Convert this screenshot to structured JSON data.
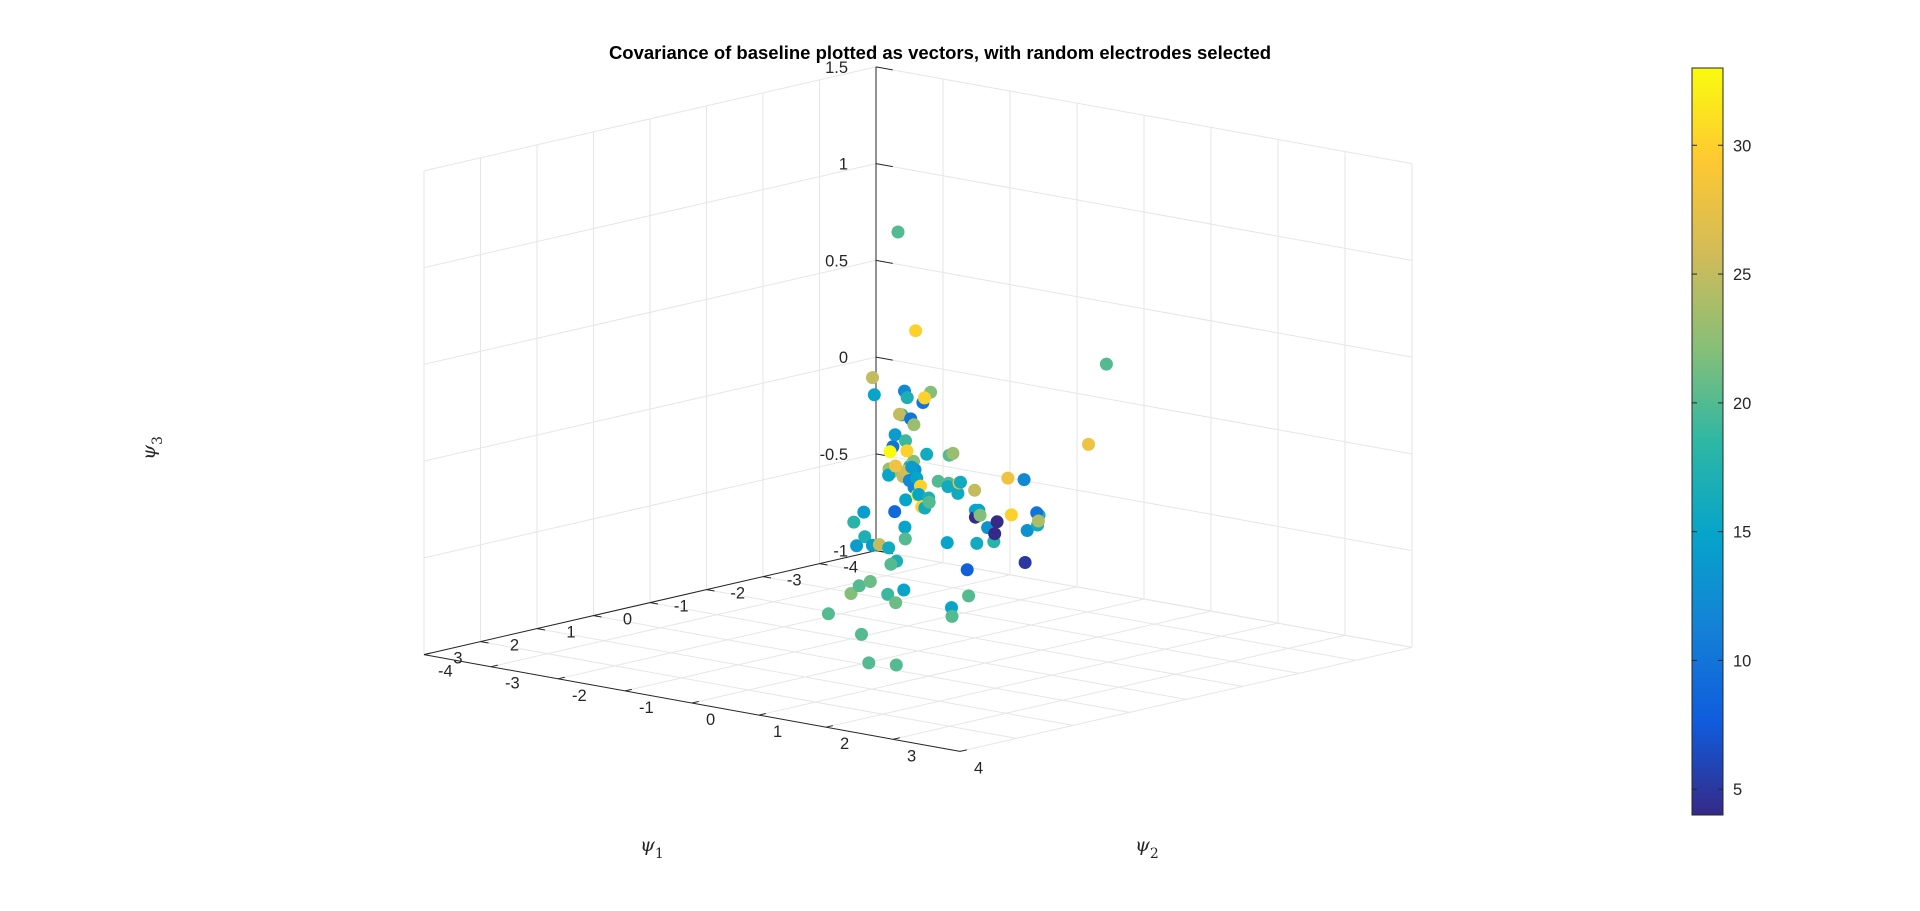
{
  "chart_data": {
    "type": "scatter3d",
    "title": "Covariance of baseline plotted as vectors, with random electrodes selected",
    "xlabel": {
      "symbol": "ψ",
      "sub": "1"
    },
    "ylabel": {
      "symbol": "ψ",
      "sub": "2"
    },
    "zlabel": {
      "symbol": "ψ",
      "sub": "3"
    },
    "xlim": [
      -4,
      4
    ],
    "ylim": [
      -4,
      4
    ],
    "zlim": [
      -1,
      1.5
    ],
    "x_ticks": [
      "-4",
      "-3",
      "-2",
      "-1",
      "0",
      "1",
      "2",
      "3"
    ],
    "y_ticks": [
      "-4",
      "-3",
      "-2",
      "-1",
      "0",
      "1",
      "2",
      "3",
      "4"
    ],
    "z_ticks": [
      "-1",
      "-0.5",
      "0",
      "0.5",
      "1",
      "1.5"
    ],
    "grid": true,
    "colormap": "parula",
    "colorbar": {
      "range": [
        4,
        33
      ],
      "ticks": [
        "5",
        "10",
        "15",
        "20",
        "25",
        "30"
      ]
    },
    "points": [
      {
        "x": -3.31,
        "y": -3.09,
        "z": 0.75,
        "c": 20
      },
      {
        "x": 1.93,
        "y": 4.44,
        "z": 0.89,
        "c": 20
      },
      {
        "x": -0.61,
        "y": -0.55,
        "z": 0.58,
        "c": 30
      },
      {
        "x": -1.59,
        "y": -2.02,
        "z": 0.18,
        "c": 25
      },
      {
        "x": -1.61,
        "y": -2.01,
        "z": 0.09,
        "c": 15
      },
      {
        "x": -0.84,
        "y": -0.91,
        "z": 0.23,
        "c": 12
      },
      {
        "x": -0.58,
        "y": -0.65,
        "z": 0.23,
        "c": 17
      },
      {
        "x": -0.91,
        "y": -0.58,
        "z": 0.24,
        "c": 22
      },
      {
        "x": -0.49,
        "y": -0.34,
        "z": 0.23,
        "c": 10
      },
      {
        "x": -0.44,
        "y": -0.48,
        "z": 0.14,
        "c": 10
      },
      {
        "x": -0.71,
        "y": -0.84,
        "z": 0.12,
        "c": 17
      },
      {
        "x": -0.55,
        "y": -0.74,
        "z": 0.14,
        "c": 25
      },
      {
        "x": 0.3,
        "y": 0.35,
        "z": 0.35,
        "c": 30
      },
      {
        "x": -1.11,
        "y": -1.31,
        "z": -0.1,
        "c": 10
      },
      {
        "x": -0.97,
        "y": -1.16,
        "z": -0.02,
        "c": 14
      },
      {
        "x": -0.53,
        "y": -0.88,
        "z": -0.15,
        "c": 23
      },
      {
        "x": -0.47,
        "y": -0.52,
        "z": -0.11,
        "c": 18
      },
      {
        "x": 0.14,
        "y": -0.3,
        "z": 0.02,
        "c": 33
      },
      {
        "x": -0.04,
        "y": -0.22,
        "z": 0.07,
        "c": 19
      },
      {
        "x": -0.05,
        "y": -0.11,
        "z": -0.03,
        "c": 22
      },
      {
        "x": 0.21,
        "y": -0.16,
        "z": -0.04,
        "c": 28
      },
      {
        "x": -0.19,
        "y": -0.22,
        "z": -0.1,
        "c": 8
      },
      {
        "x": -0.07,
        "y": -0.24,
        "z": -0.09,
        "c": 26
      },
      {
        "x": 0.22,
        "y": 0.02,
        "z": 0.05,
        "c": 30
      },
      {
        "x": -0.03,
        "y": -0.07,
        "z": -0.07,
        "c": 13
      },
      {
        "x": 0.12,
        "y": 0.04,
        "z": 0.18,
        "c": 23
      },
      {
        "x": 0.14,
        "y": -0.01,
        "z": -0.11,
        "c": 12
      },
      {
        "x": 0.07,
        "y": 0.0,
        "z": -0.15,
        "c": 12
      },
      {
        "x": 0.17,
        "y": -0.04,
        "z": -0.21,
        "c": 15
      },
      {
        "x": 0.3,
        "y": 0.16,
        "z": -0.02,
        "c": 14
      },
      {
        "x": 0.4,
        "y": 0.32,
        "z": -0.06,
        "c": 15
      },
      {
        "x": 0.38,
        "y": 0.31,
        "z": -0.15,
        "c": 33
      },
      {
        "x": -0.43,
        "y": -0.75,
        "z": -0.15,
        "c": 23
      },
      {
        "x": -0.18,
        "y": -0.59,
        "z": -0.14,
        "c": 15
      },
      {
        "x": -0.4,
        "y": -0.56,
        "z": -0.16,
        "c": 25
      },
      {
        "x": 0.01,
        "y": -0.34,
        "z": -0.3,
        "c": 9
      },
      {
        "x": 0.6,
        "y": 0.31,
        "z": -0.3,
        "c": 15
      },
      {
        "x": -0.31,
        "y": -1.07,
        "z": -0.37,
        "c": 14
      },
      {
        "x": 0.2,
        "y": -0.79,
        "z": -0.37,
        "c": 18
      },
      {
        "x": 0.74,
        "y": -0.17,
        "z": -0.37,
        "c": 17
      },
      {
        "x": 0.89,
        "y": 0.07,
        "z": -0.39,
        "c": 14
      },
      {
        "x": 1.05,
        "y": 0.31,
        "z": -0.36,
        "c": 25
      },
      {
        "x": 1.29,
        "y": 0.65,
        "z": -0.34,
        "c": 16
      },
      {
        "x": 1.02,
        "y": 0.67,
        "z": -0.31,
        "c": 20
      },
      {
        "x": 0.88,
        "y": 0.78,
        "z": -0.04,
        "c": 30
      },
      {
        "x": 1.09,
        "y": 0.93,
        "z": -0.06,
        "c": 15
      },
      {
        "x": 1.18,
        "y": 1.05,
        "z": -0.11,
        "c": 30
      },
      {
        "x": 1.08,
        "y": 1.07,
        "z": -0.07,
        "c": 17
      },
      {
        "x": 1.03,
        "y": 1.17,
        "z": 0.02,
        "c": 20
      },
      {
        "x": 0.74,
        "y": 1.09,
        "z": 0.13,
        "c": 20
      },
      {
        "x": 1.29,
        "y": 1.19,
        "z": -0.1,
        "c": 16
      },
      {
        "x": 1.26,
        "y": 1.23,
        "z": -0.07,
        "c": 20
      },
      {
        "x": 1.21,
        "y": 1.15,
        "z": 0.17,
        "c": 16
      },
      {
        "x": 1.37,
        "y": 1.61,
        "z": 0.06,
        "c": 20
      },
      {
        "x": 1.47,
        "y": 1.76,
        "z": 0.23,
        "c": 23
      },
      {
        "x": 1.77,
        "y": 1.94,
        "z": 0.09,
        "c": 16
      },
      {
        "x": 1.82,
        "y": 2.13,
        "z": 0.07,
        "c": 16
      },
      {
        "x": 1.94,
        "y": 2.25,
        "z": 0.14,
        "c": 28
      },
      {
        "x": 2.07,
        "y": 2.38,
        "z": 0.16,
        "c": 16
      },
      {
        "x": 2.14,
        "y": 2.65,
        "z": 0.14,
        "c": 25
      },
      {
        "x": 1.83,
        "y": 2.4,
        "z": 0.0,
        "c": 15
      },
      {
        "x": 2.22,
        "y": 2.78,
        "z": 0.05,
        "c": 15
      },
      {
        "x": 2.21,
        "y": 2.72,
        "z": 0.01,
        "c": 4
      },
      {
        "x": 2.34,
        "y": 2.9,
        "z": 0.04,
        "c": 22
      },
      {
        "x": 2.48,
        "y": 3.13,
        "z": 0.0,
        "c": 13
      },
      {
        "x": 2.49,
        "y": 3.28,
        "z": 0.04,
        "c": 4
      },
      {
        "x": 2.41,
        "y": 2.91,
        "z": -0.1,
        "c": 16
      },
      {
        "x": 2.62,
        "y": 3.34,
        "z": -0.05,
        "c": 18
      },
      {
        "x": 2.77,
        "y": 3.48,
        "z": 0.01,
        "c": 4
      },
      {
        "x": 2.44,
        "y": 3.4,
        "z": 0.27,
        "c": 28
      },
      {
        "x": 2.83,
        "y": 3.78,
        "z": 0.13,
        "c": 30
      },
      {
        "x": 2.96,
        "y": 4.08,
        "z": 0.34,
        "c": 12
      },
      {
        "x": 3.13,
        "y": 4.27,
        "z": 0.1,
        "c": 13
      },
      {
        "x": 3.3,
        "y": 4.59,
        "z": 0.21,
        "c": 17
      },
      {
        "x": 3.46,
        "y": 4.69,
        "z": 0.24,
        "c": 10
      },
      {
        "x": 3.48,
        "y": 4.72,
        "z": 0.18,
        "c": 16
      },
      {
        "x": 3.55,
        "y": 4.79,
        "z": 0.21,
        "c": 24
      },
      {
        "x": 3.69,
        "y": 4.71,
        "z": 0.0,
        "c": 5
      },
      {
        "x": 3.03,
        "y": 5.1,
        "z": 0.59,
        "c": 28
      },
      {
        "x": 0.71,
        "y": 0.28,
        "z": -0.47,
        "c": 17
      },
      {
        "x": 0.63,
        "y": -0.18,
        "z": -0.61,
        "c": 21
      },
      {
        "x": 0.88,
        "y": 0.29,
        "z": -0.63,
        "c": 19
      },
      {
        "x": 1.06,
        "y": 0.49,
        "z": -0.45,
        "c": 20
      },
      {
        "x": 1.26,
        "y": 0.73,
        "z": -0.62,
        "c": 21
      },
      {
        "x": 1.65,
        "y": 1.18,
        "z": -0.5,
        "c": 15
      },
      {
        "x": 1.44,
        "y": 1.65,
        "z": -0.24,
        "c": 15
      },
      {
        "x": 1.62,
        "y": 2.1,
        "z": -0.34,
        "c": 8
      },
      {
        "x": 1.82,
        "y": 2.29,
        "z": -0.45,
        "c": 20
      },
      {
        "x": 1.79,
        "y": 2.01,
        "z": -0.53,
        "c": 15
      },
      {
        "x": 1.83,
        "y": 2.05,
        "z": -0.57,
        "c": 20
      },
      {
        "x": 0.4,
        "y": -0.54,
        "z": -0.67,
        "c": 20
      },
      {
        "x": 0.38,
        "y": -0.68,
        "z": -0.72,
        "c": 22
      },
      {
        "x": 0.81,
        "y": -0.16,
        "z": -0.87,
        "c": 20
      },
      {
        "x": 0.48,
        "y": -0.33,
        "z": -1.05,
        "c": 20
      },
      {
        "x": 1.44,
        "y": 0.89,
        "z": -0.92,
        "c": 20
      },
      {
        "x": -0.24,
        "y": -1.54,
        "z": -0.92,
        "c": 20
      },
      {
        "x": 0.53,
        "y": -0.47,
        "z": -0.45,
        "c": 14
      }
    ]
  }
}
